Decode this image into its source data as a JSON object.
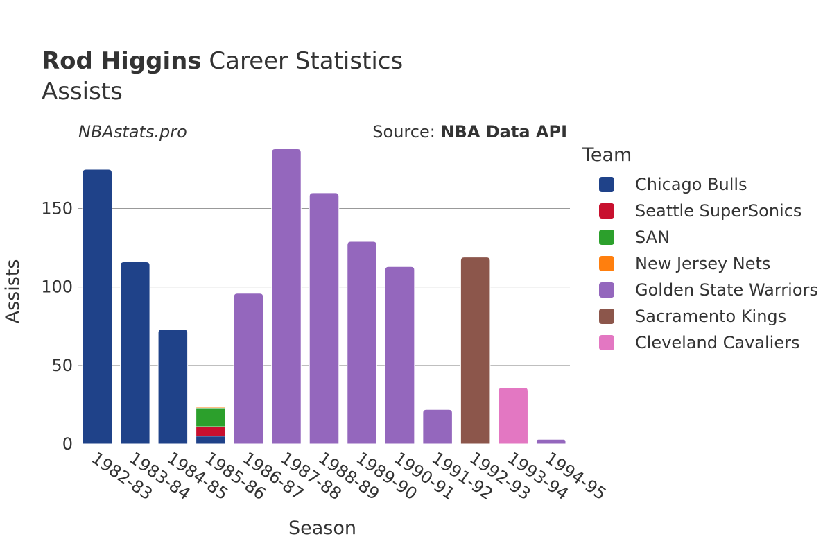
{
  "header": {
    "title_bold": "Rod Higgins",
    "title_rest": " Career Statistics",
    "subtitle": "Assists",
    "watermark": "NBAstats.pro",
    "source_prefix": "Source: ",
    "source_bold": "NBA Data API"
  },
  "legend": {
    "title": "Team",
    "items": [
      {
        "label": "Chicago Bulls",
        "color": "#1f4289"
      },
      {
        "label": "Seattle SuperSonics",
        "color": "#c8102e"
      },
      {
        "label": "SAN",
        "color": "#2ca02c"
      },
      {
        "label": "New Jersey Nets",
        "color": "#ff7f0e"
      },
      {
        "label": "Golden State Warriors",
        "color": "#9467bd"
      },
      {
        "label": "Sacramento Kings",
        "color": "#8c564b"
      },
      {
        "label": "Cleveland Cavaliers",
        "color": "#e377c2"
      }
    ]
  },
  "chart_data": {
    "type": "bar",
    "stacked": true,
    "title": "Rod Higgins Career Statistics",
    "subtitle": "Assists",
    "xlabel": "Season",
    "ylabel": "Assists",
    "ylim": [
      0,
      190
    ],
    "yticks": [
      0,
      50,
      100,
      150
    ],
    "grid": true,
    "legend_position": "right",
    "categories": [
      "1982-83",
      "1983-84",
      "1984-85",
      "1985-86",
      "1986-87",
      "1987-88",
      "1988-89",
      "1989-90",
      "1990-91",
      "1991-92",
      "1992-93",
      "1993-94",
      "1994-95"
    ],
    "series": [
      {
        "name": "Chicago Bulls",
        "color": "#1f4289",
        "values": [
          175,
          116,
          73,
          5,
          0,
          0,
          0,
          0,
          0,
          0,
          0,
          0,
          0
        ]
      },
      {
        "name": "Seattle SuperSonics",
        "color": "#c8102e",
        "values": [
          0,
          0,
          0,
          6,
          0,
          0,
          0,
          0,
          0,
          0,
          0,
          0,
          0
        ]
      },
      {
        "name": "SAN",
        "color": "#2ca02c",
        "values": [
          0,
          0,
          0,
          12,
          0,
          0,
          0,
          0,
          0,
          0,
          0,
          0,
          0
        ]
      },
      {
        "name": "New Jersey Nets",
        "color": "#ff7f0e",
        "values": [
          0,
          0,
          0,
          1,
          0,
          0,
          0,
          0,
          0,
          0,
          0,
          0,
          0
        ]
      },
      {
        "name": "Golden State Warriors",
        "color": "#9467bd",
        "values": [
          0,
          0,
          0,
          0,
          96,
          188,
          160,
          129,
          113,
          22,
          0,
          0,
          3
        ]
      },
      {
        "name": "Sacramento Kings",
        "color": "#8c564b",
        "values": [
          0,
          0,
          0,
          0,
          0,
          0,
          0,
          0,
          0,
          0,
          119,
          0,
          0
        ]
      },
      {
        "name": "Cleveland Cavaliers",
        "color": "#e377c2",
        "values": [
          0,
          0,
          0,
          0,
          0,
          0,
          0,
          0,
          0,
          0,
          0,
          36,
          0
        ]
      }
    ]
  }
}
